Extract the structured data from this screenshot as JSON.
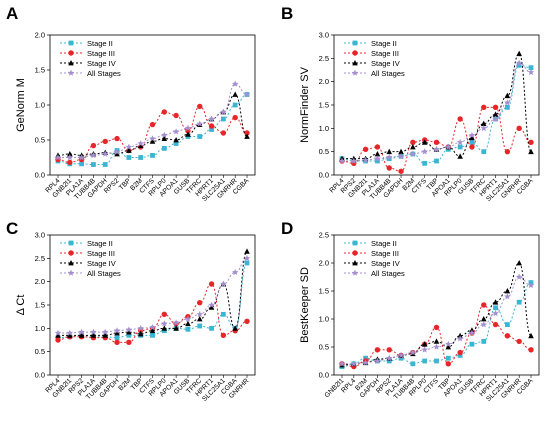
{
  "series_styles": [
    {
      "name": "Stage II",
      "color": "#3ab6d2",
      "marker": "square",
      "dash": "2,2"
    },
    {
      "name": "Stage III",
      "color": "#e8262a",
      "marker": "circle",
      "dash": "2,2"
    },
    {
      "name": "Stage IV",
      "color": "#000000",
      "marker": "triangle",
      "dash": "2,2"
    },
    {
      "name": "All Stages",
      "color": "#a48fcf",
      "marker": "star",
      "dash": "2,2"
    }
  ],
  "chart_data": [
    {
      "panel": "A",
      "type": "line",
      "ylabel": "GeNorm M",
      "ylim": [
        0,
        2.0
      ],
      "yticks": [
        0.0,
        0.5,
        1.0,
        1.5,
        2.0
      ],
      "legend": "top-left",
      "categories": [
        "RPL4",
        "GNB2l1",
        "PLA1A",
        "TUBB4B",
        "GAPDH",
        "RPS2",
        "TBP",
        "B2M",
        "CTFS",
        "RPLP0",
        "APOA1",
        "GUSB",
        "TFRC",
        "HPRT1",
        "SLC25A1",
        "GNRHR",
        "CGBA"
      ],
      "series": [
        {
          "name": "Stage II",
          "values": [
            0.2,
            0.16,
            0.16,
            0.15,
            0.15,
            0.35,
            0.25,
            0.25,
            0.28,
            0.38,
            0.45,
            0.55,
            0.55,
            0.65,
            0.8,
            1.0,
            1.15
          ]
        },
        {
          "name": "Stage III",
          "values": [
            0.22,
            0.18,
            0.22,
            0.42,
            0.48,
            0.52,
            0.35,
            0.4,
            0.72,
            0.9,
            0.85,
            0.63,
            0.98,
            0.7,
            0.6,
            0.82,
            0.6
          ]
        },
        {
          "name": "Stage IV",
          "values": [
            0.28,
            0.3,
            0.28,
            0.3,
            0.32,
            0.3,
            0.35,
            0.42,
            0.48,
            0.52,
            0.5,
            0.58,
            0.72,
            0.8,
            0.9,
            1.15,
            0.55
          ]
        },
        {
          "name": "All Stages",
          "values": [
            0.25,
            0.25,
            0.25,
            0.28,
            0.3,
            0.33,
            0.4,
            0.45,
            0.52,
            0.57,
            0.62,
            0.67,
            0.73,
            0.8,
            0.9,
            1.3,
            1.15
          ]
        }
      ]
    },
    {
      "panel": "B",
      "type": "line",
      "ylabel": "NormFinder SV",
      "ylim": [
        0,
        3.0
      ],
      "yticks": [
        0.0,
        0.5,
        1.0,
        1.5,
        2.0,
        2.5,
        3.0
      ],
      "legend": "top-left",
      "categories": [
        "RPL4",
        "RPS2",
        "GNB2l1",
        "PLA1A",
        "TUBB4B",
        "GAPDH",
        "B2M",
        "CTFS",
        "TBP",
        "APOA1",
        "RPLP0",
        "GUSB",
        "TFRC",
        "HPRT1",
        "SLC25A1",
        "GNRHR",
        "CGBA"
      ],
      "series": [
        {
          "name": "Stage II",
          "values": [
            0.35,
            0.3,
            0.3,
            0.3,
            0.35,
            0.4,
            0.45,
            0.25,
            0.3,
            0.55,
            0.6,
            0.7,
            0.5,
            1.2,
            1.45,
            2.35,
            2.3
          ]
        },
        {
          "name": "Stage III",
          "values": [
            0.3,
            0.25,
            0.55,
            0.6,
            0.15,
            0.08,
            0.7,
            0.75,
            0.7,
            0.6,
            1.2,
            0.6,
            1.45,
            1.45,
            0.5,
            1.0,
            0.7
          ]
        },
        {
          "name": "Stage IV",
          "values": [
            0.35,
            0.35,
            0.35,
            0.45,
            0.5,
            0.5,
            0.6,
            0.7,
            0.55,
            0.6,
            0.4,
            0.8,
            1.1,
            1.3,
            1.7,
            2.6,
            0.5
          ]
        },
        {
          "name": "All Stages",
          "values": [
            0.3,
            0.3,
            0.32,
            0.35,
            0.38,
            0.4,
            0.45,
            0.5,
            0.55,
            0.6,
            0.7,
            0.85,
            1.0,
            1.2,
            1.55,
            2.4,
            2.2
          ]
        }
      ]
    },
    {
      "panel": "C",
      "type": "line",
      "ylabel": "Δ Ct",
      "ylim": [
        0.0,
        3.0
      ],
      "yticks": [
        0.0,
        0.5,
        1.0,
        1.5,
        2.0,
        2.5,
        3.0
      ],
      "legend": "top-left",
      "categories": [
        "RPL4",
        "GNB2l1",
        "RPS2",
        "PLA1A",
        "TUBB4B",
        "GAPDH",
        "B2M",
        "TBP",
        "CTFS",
        "RPLP0",
        "APOA1",
        "GUSB",
        "TFRC",
        "HPRT1",
        "SLC25A1",
        "CGBA",
        "GNRHR"
      ],
      "series": [
        {
          "name": "Stage II",
          "values": [
            0.8,
            0.82,
            0.85,
            0.82,
            0.82,
            0.8,
            0.85,
            0.85,
            0.85,
            0.95,
            1.0,
            0.98,
            1.05,
            1.0,
            1.3,
            1.0,
            2.4
          ]
        },
        {
          "name": "Stage III",
          "values": [
            0.75,
            0.82,
            0.82,
            0.8,
            0.8,
            0.7,
            0.7,
            0.95,
            1.0,
            1.3,
            1.1,
            1.25,
            1.55,
            1.95,
            0.85,
            0.95,
            1.15
          ]
        },
        {
          "name": "Stage IV",
          "values": [
            0.85,
            0.85,
            0.85,
            0.85,
            0.85,
            0.9,
            0.92,
            0.88,
            0.95,
            1.0,
            1.0,
            1.1,
            1.2,
            1.45,
            1.95,
            1.0,
            2.65
          ]
        },
        {
          "name": "All Stages",
          "values": [
            0.9,
            0.9,
            0.92,
            0.92,
            0.92,
            0.95,
            0.97,
            1.0,
            1.02,
            1.1,
            1.12,
            1.2,
            1.3,
            1.5,
            1.95,
            2.2,
            2.5
          ]
        }
      ]
    },
    {
      "panel": "D",
      "type": "line",
      "ylabel": "BestKeeper SD",
      "ylim": [
        0.0,
        2.5
      ],
      "yticks": [
        0.0,
        0.5,
        1.0,
        1.5,
        2.0,
        2.5
      ],
      "legend": "top-left",
      "categories": [
        "GNB2l1",
        "RPL4",
        "B2M",
        "GAPDH",
        "RPS2",
        "PLA1A",
        "TUBB4B",
        "RPLP0",
        "CTFS",
        "TBP",
        "APOA1",
        "GUSB",
        "TFRC",
        "HPRT1",
        "SLC25A1",
        "GNRHR",
        "CGBA"
      ],
      "series": [
        {
          "name": "Stage II",
          "values": [
            0.15,
            0.2,
            0.3,
            0.25,
            0.25,
            0.3,
            0.2,
            0.25,
            0.25,
            0.3,
            0.35,
            0.55,
            0.6,
            1.2,
            0.9,
            1.3,
            1.65
          ]
        },
        {
          "name": "Stage III",
          "values": [
            0.2,
            0.15,
            0.25,
            0.45,
            0.45,
            0.35,
            0.4,
            0.55,
            0.85,
            0.2,
            0.4,
            0.75,
            1.25,
            0.9,
            0.7,
            0.6,
            0.45
          ]
        },
        {
          "name": "Stage IV",
          "values": [
            0.18,
            0.2,
            0.22,
            0.28,
            0.3,
            0.35,
            0.38,
            0.55,
            0.6,
            0.5,
            0.7,
            0.8,
            1.0,
            1.3,
            1.5,
            2.0,
            0.7
          ]
        },
        {
          "name": "All Stages",
          "values": [
            0.2,
            0.2,
            0.22,
            0.25,
            0.3,
            0.35,
            0.4,
            0.45,
            0.5,
            0.55,
            0.65,
            0.75,
            0.9,
            1.1,
            1.4,
            1.75,
            1.6
          ]
        }
      ]
    }
  ]
}
